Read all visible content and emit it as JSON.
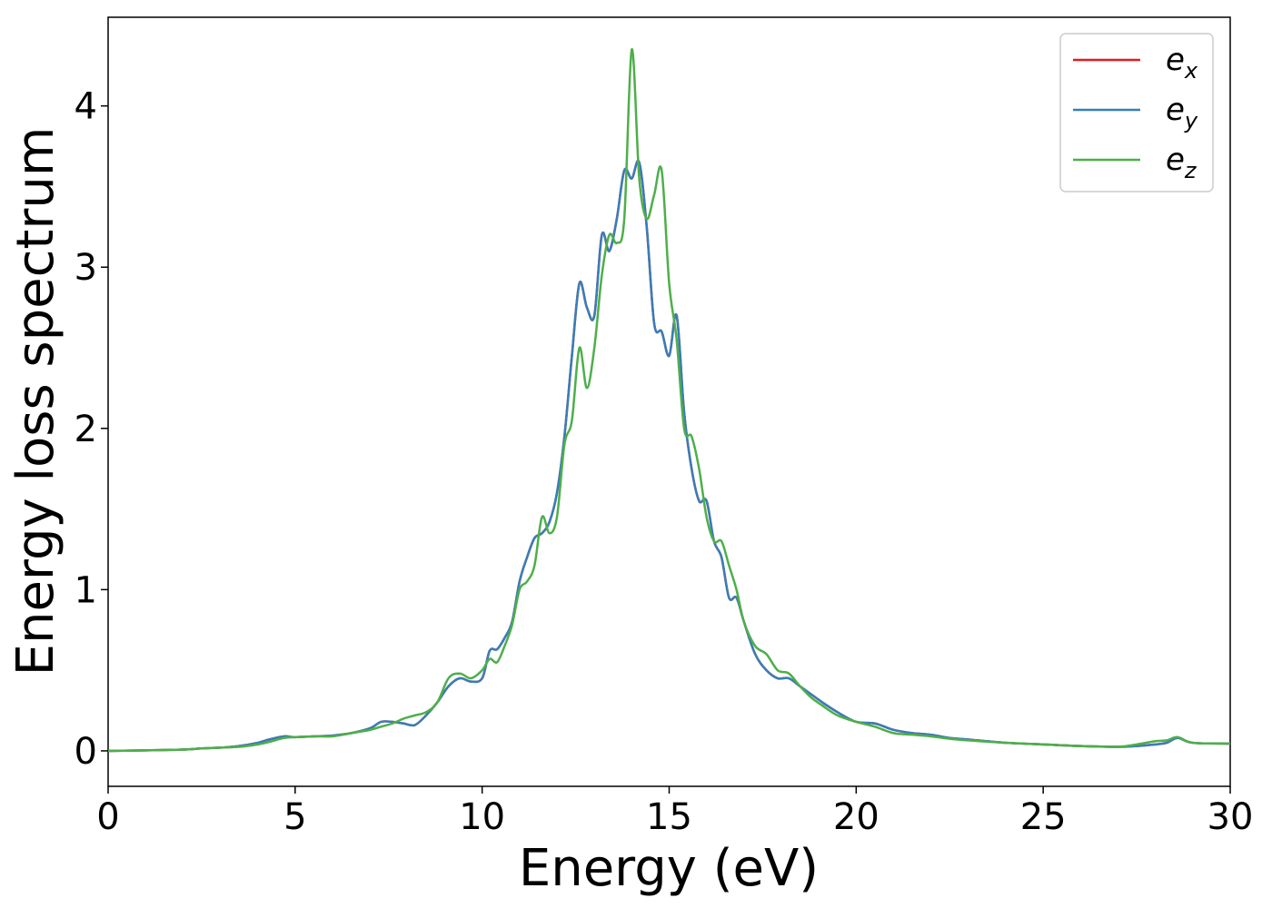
{
  "chart_data": {
    "type": "line",
    "title": "",
    "xlabel": "Energy (eV)",
    "ylabel": "Energy loss spectrum",
    "xlim": [
      0,
      30
    ],
    "ylim": [
      -0.22,
      4.55
    ],
    "xticks": [
      0,
      5,
      10,
      15,
      20,
      25,
      30
    ],
    "yticks": [
      0,
      1,
      2,
      3,
      4
    ],
    "grid": false,
    "legend_position": "top-right",
    "series": [
      {
        "name": "e_x",
        "label_base": "e",
        "label_sub": "x",
        "color": "#e41a1c",
        "x": [
          0,
          1,
          2,
          2.5,
          3,
          3.5,
          4,
          4.3,
          4.7,
          5.0,
          5.5,
          6.0,
          6.5,
          7.0,
          7.3,
          7.6,
          7.9,
          8.2,
          8.5,
          8.8,
          9.1,
          9.4,
          9.7,
          10.0,
          10.2,
          10.4,
          10.6,
          10.8,
          11.0,
          11.2,
          11.4,
          11.6,
          11.8,
          12.0,
          12.2,
          12.4,
          12.6,
          12.8,
          13.0,
          13.2,
          13.4,
          13.6,
          13.8,
          14.0,
          14.2,
          14.4,
          14.6,
          14.8,
          15.0,
          15.2,
          15.4,
          15.6,
          15.8,
          16.0,
          16.2,
          16.4,
          16.6,
          16.8,
          17.0,
          17.3,
          17.6,
          17.9,
          18.2,
          18.5,
          18.8,
          19.1,
          19.5,
          20.0,
          20.5,
          21.0,
          21.5,
          22.0,
          22.5,
          23.0,
          24.0,
          25.0,
          26.0,
          27.0,
          27.5,
          28.0,
          28.3,
          28.6,
          29.0,
          30.0
        ],
        "y": [
          0,
          0.003,
          0.008,
          0.015,
          0.02,
          0.03,
          0.05,
          0.07,
          0.09,
          0.085,
          0.09,
          0.095,
          0.11,
          0.14,
          0.18,
          0.18,
          0.17,
          0.16,
          0.22,
          0.3,
          0.4,
          0.45,
          0.43,
          0.45,
          0.62,
          0.63,
          0.7,
          0.8,
          1.05,
          1.2,
          1.32,
          1.35,
          1.42,
          1.6,
          1.95,
          2.45,
          2.9,
          2.75,
          2.7,
          3.2,
          3.1,
          3.3,
          3.6,
          3.55,
          3.65,
          3.25,
          2.65,
          2.6,
          2.45,
          2.7,
          2.1,
          1.75,
          1.55,
          1.55,
          1.3,
          1.2,
          0.95,
          0.95,
          0.8,
          0.6,
          0.5,
          0.45,
          0.45,
          0.4,
          0.35,
          0.3,
          0.24,
          0.18,
          0.17,
          0.13,
          0.11,
          0.1,
          0.08,
          0.07,
          0.05,
          0.04,
          0.03,
          0.025,
          0.03,
          0.04,
          0.05,
          0.08,
          0.05,
          0.045
        ]
      },
      {
        "name": "e_y",
        "label_base": "e",
        "label_sub": "y",
        "color": "#377eb8",
        "x": [
          0,
          1,
          2,
          2.5,
          3,
          3.5,
          4,
          4.3,
          4.7,
          5.0,
          5.5,
          6.0,
          6.5,
          7.0,
          7.3,
          7.6,
          7.9,
          8.2,
          8.5,
          8.8,
          9.1,
          9.4,
          9.7,
          10.0,
          10.2,
          10.4,
          10.6,
          10.8,
          11.0,
          11.2,
          11.4,
          11.6,
          11.8,
          12.0,
          12.2,
          12.4,
          12.6,
          12.8,
          13.0,
          13.2,
          13.4,
          13.6,
          13.8,
          14.0,
          14.2,
          14.4,
          14.6,
          14.8,
          15.0,
          15.2,
          15.4,
          15.6,
          15.8,
          16.0,
          16.2,
          16.4,
          16.6,
          16.8,
          17.0,
          17.3,
          17.6,
          17.9,
          18.2,
          18.5,
          18.8,
          19.1,
          19.5,
          20.0,
          20.5,
          21.0,
          21.5,
          22.0,
          22.5,
          23.0,
          24.0,
          25.0,
          26.0,
          27.0,
          27.5,
          28.0,
          28.3,
          28.6,
          29.0,
          30.0
        ],
        "y": [
          0,
          0.003,
          0.008,
          0.015,
          0.02,
          0.03,
          0.05,
          0.07,
          0.09,
          0.085,
          0.09,
          0.095,
          0.11,
          0.14,
          0.18,
          0.18,
          0.17,
          0.16,
          0.22,
          0.3,
          0.4,
          0.45,
          0.43,
          0.45,
          0.62,
          0.63,
          0.7,
          0.8,
          1.05,
          1.2,
          1.32,
          1.35,
          1.42,
          1.6,
          1.95,
          2.45,
          2.9,
          2.75,
          2.7,
          3.2,
          3.1,
          3.3,
          3.6,
          3.55,
          3.65,
          3.25,
          2.65,
          2.6,
          2.45,
          2.7,
          2.1,
          1.75,
          1.55,
          1.55,
          1.3,
          1.2,
          0.95,
          0.95,
          0.8,
          0.6,
          0.5,
          0.45,
          0.45,
          0.4,
          0.35,
          0.3,
          0.24,
          0.18,
          0.17,
          0.13,
          0.11,
          0.1,
          0.08,
          0.07,
          0.05,
          0.04,
          0.03,
          0.025,
          0.03,
          0.04,
          0.05,
          0.08,
          0.05,
          0.045
        ]
      },
      {
        "name": "e_z",
        "label_base": "e",
        "label_sub": "z",
        "color": "#4daf4a",
        "x": [
          0,
          1,
          2,
          2.5,
          3,
          3.5,
          4,
          4.3,
          4.7,
          5.0,
          5.5,
          6.0,
          6.5,
          7.0,
          7.3,
          7.6,
          7.9,
          8.2,
          8.5,
          8.8,
          9.1,
          9.4,
          9.7,
          10.0,
          10.2,
          10.4,
          10.6,
          10.8,
          11.0,
          11.2,
          11.4,
          11.6,
          11.8,
          12.0,
          12.2,
          12.4,
          12.6,
          12.8,
          13.0,
          13.2,
          13.4,
          13.6,
          13.8,
          14.0,
          14.2,
          14.4,
          14.6,
          14.8,
          15.0,
          15.2,
          15.4,
          15.6,
          15.8,
          16.0,
          16.2,
          16.4,
          16.6,
          16.8,
          17.0,
          17.3,
          17.6,
          17.9,
          18.2,
          18.5,
          18.8,
          19.1,
          19.5,
          20.0,
          20.5,
          21.0,
          21.5,
          22.0,
          22.5,
          23.0,
          24.0,
          25.0,
          26.0,
          27.0,
          27.5,
          28.0,
          28.3,
          28.6,
          29.0,
          30.0
        ],
        "y": [
          0,
          0.003,
          0.008,
          0.015,
          0.02,
          0.025,
          0.04,
          0.055,
          0.08,
          0.085,
          0.09,
          0.09,
          0.11,
          0.13,
          0.15,
          0.17,
          0.2,
          0.22,
          0.24,
          0.3,
          0.45,
          0.48,
          0.45,
          0.5,
          0.57,
          0.55,
          0.65,
          0.78,
          1.0,
          1.05,
          1.15,
          1.45,
          1.35,
          1.45,
          1.9,
          2.05,
          2.5,
          2.25,
          2.5,
          2.95,
          3.2,
          3.15,
          3.3,
          4.35,
          3.55,
          3.3,
          3.45,
          3.6,
          2.9,
          2.55,
          2.0,
          1.95,
          1.75,
          1.45,
          1.3,
          1.3,
          1.15,
          1.0,
          0.8,
          0.65,
          0.6,
          0.5,
          0.48,
          0.4,
          0.33,
          0.28,
          0.22,
          0.18,
          0.15,
          0.11,
          0.1,
          0.09,
          0.075,
          0.065,
          0.05,
          0.04,
          0.03,
          0.025,
          0.04,
          0.06,
          0.065,
          0.085,
          0.05,
          0.045
        ]
      }
    ]
  }
}
